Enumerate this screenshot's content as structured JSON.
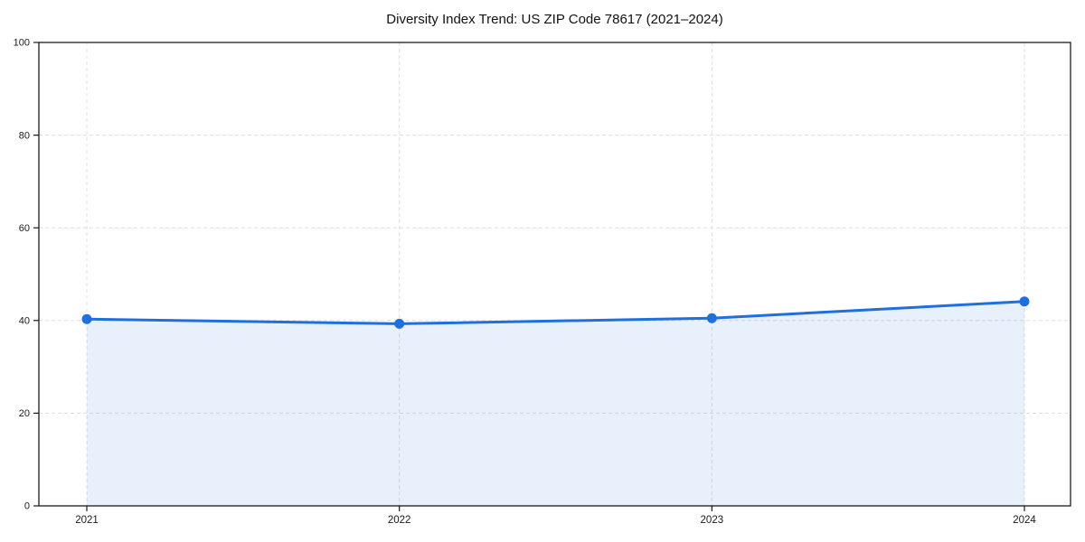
{
  "chart_data": {
    "type": "line",
    "title": "Diversity Index Trend: US ZIP Code 78617 (2021–2024)",
    "categories": [
      "2021",
      "2022",
      "2023",
      "2024"
    ],
    "values": [
      40.3,
      39.3,
      40.5,
      44.1
    ],
    "series_name": "Diversity Index",
    "xlabel": "",
    "ylabel": "",
    "ylim": [
      0,
      100
    ],
    "yticks": [
      0,
      20,
      40,
      60,
      80,
      100
    ],
    "grid": true,
    "grid_style": "dashed",
    "legend": false,
    "area_fill": true,
    "marker": "circle",
    "colors": {
      "line": "#1f6fde",
      "marker": "#1f6fde",
      "fill": "rgba(31,111,222,0.10)",
      "grid": "#dedede",
      "frame": "#1a1a1a",
      "tick_label": "#1a1a1a",
      "title": "#111111",
      "background": "#ffffff"
    }
  }
}
